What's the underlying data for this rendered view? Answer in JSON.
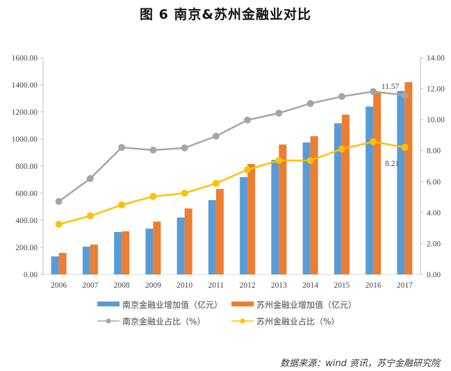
{
  "title": "图 6    南京&苏州金融业对比",
  "source": "数据来源：wind 资讯，苏宁金融研究院",
  "chart_data": {
    "type": "bar+line",
    "categories": [
      "2006",
      "2007",
      "2008",
      "2009",
      "2010",
      "2011",
      "2012",
      "2013",
      "2014",
      "2015",
      "2016",
      "2017"
    ],
    "y_left": {
      "range": [
        0,
        1600
      ],
      "ticks": [
        "0.00",
        "200.00",
        "400.00",
        "600.00",
        "800.00",
        "1000.00",
        "1200.00",
        "1400.00",
        "1600.00"
      ]
    },
    "y_right": {
      "range": [
        0,
        14
      ],
      "ticks": [
        "0.00",
        "2.00",
        "4.00",
        "6.00",
        "8.00",
        "10.00",
        "12.00",
        "14.00"
      ]
    },
    "grid": false,
    "legend_position": "bottom",
    "series": [
      {
        "name": "南京金融业增加值（亿元）",
        "type": "bar",
        "axis": "left",
        "color": "#5B9BD5",
        "values": [
          133,
          205,
          313,
          338,
          420,
          549,
          718,
          846,
          974,
          1116,
          1239,
          1354
        ]
      },
      {
        "name": "苏州金融业增加值（亿元）",
        "type": "bar",
        "axis": "left",
        "color": "#ED7D31",
        "values": [
          159,
          220,
          318,
          390,
          487,
          631,
          815,
          959,
          1020,
          1179,
          1343,
          1419
        ]
      },
      {
        "name": "南京金融业占比（%）",
        "type": "line",
        "axis": "right",
        "color": "#A5A5A5",
        "values": [
          4.71,
          6.19,
          8.2,
          8.03,
          8.17,
          8.93,
          9.97,
          10.42,
          11.04,
          11.49,
          11.81,
          11.57
        ]
      },
      {
        "name": "苏州金融业占比（%）",
        "type": "line",
        "axis": "right",
        "color": "#FFC000",
        "values": [
          3.24,
          3.78,
          4.49,
          5.04,
          5.25,
          5.88,
          6.77,
          7.36,
          7.36,
          8.1,
          8.57,
          8.21
        ]
      }
    ],
    "annotations": [
      {
        "series": 2,
        "index": 11,
        "text": "11.57"
      },
      {
        "series": 3,
        "index": 11,
        "text": "8.21"
      }
    ]
  }
}
